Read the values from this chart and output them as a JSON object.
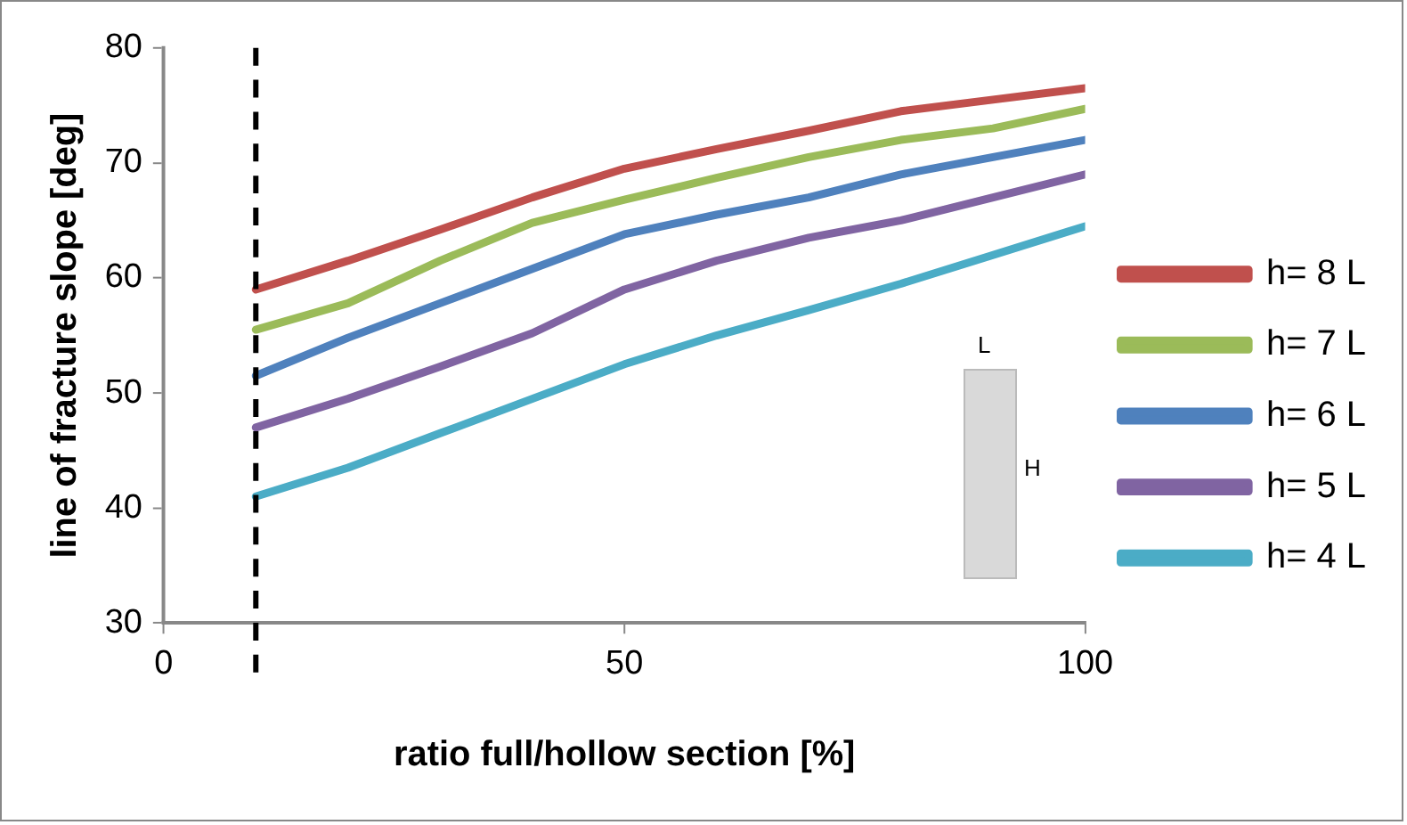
{
  "chart_data": {
    "type": "line",
    "xlabel": "ratio full/hollow section [%]",
    "ylabel": "line of fracture slope [deg]",
    "x": [
      10,
      20,
      30,
      40,
      50,
      60,
      70,
      80,
      90,
      100
    ],
    "series": [
      {
        "name": "h= 8 L",
        "color": "#c0504d",
        "values": [
          59,
          61.5,
          64.2,
          67,
          69.5,
          71.2,
          72.8,
          74.5,
          75.5,
          76.5
        ]
      },
      {
        "name": "h= 7 L",
        "color": "#9bbb59",
        "values": [
          55.5,
          57.8,
          61.5,
          64.8,
          66.8,
          68.7,
          70.5,
          72,
          73,
          74.7
        ]
      },
      {
        "name": "h= 6 L",
        "color": "#4f81bd",
        "values": [
          51.5,
          54.8,
          57.8,
          60.8,
          63.8,
          65.5,
          67,
          69,
          70.5,
          72
        ]
      },
      {
        "name": "h= 5 L",
        "color": "#8064a2",
        "values": [
          47,
          49.5,
          52.3,
          55.2,
          59,
          61.5,
          63.5,
          65,
          67,
          69
        ]
      },
      {
        "name": "h= 4 L",
        "color": "#4bacc6",
        "values": [
          41,
          43.5,
          46.5,
          49.5,
          52.5,
          55,
          57.2,
          59.5,
          62,
          64.5
        ]
      }
    ],
    "xlim": [
      0,
      100
    ],
    "xticks": [
      0,
      50,
      100
    ],
    "ylim": [
      30,
      80
    ],
    "yticks": [
      30,
      40,
      50,
      60,
      70,
      80
    ],
    "ref_lines": [
      {
        "axis": "x",
        "value": 10,
        "color": "#000000",
        "line_style": "dashed"
      }
    ],
    "annotations": [
      "L",
      "H"
    ],
    "grid": false,
    "legend": "right",
    "marker": "none",
    "line_style": "solid"
  }
}
